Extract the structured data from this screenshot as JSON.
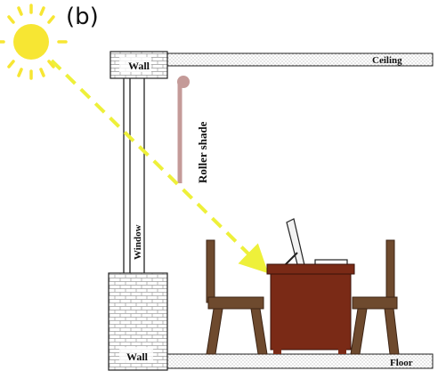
{
  "panel_label": "(b)",
  "labels": {
    "wall_top": "Wall",
    "wall_bottom": "Wall",
    "ceiling": "Ceiling",
    "floor": "Floor",
    "window": "Window",
    "roller_shade": "Roller shade"
  },
  "colors": {
    "sun": "#f7e633",
    "ray": "#eef03a",
    "shade": "#c49a98",
    "desk": "#7a2a16",
    "chair": "#6e4a2e",
    "stipple": "#8a8a8a"
  },
  "icons": [
    "sun-icon"
  ]
}
